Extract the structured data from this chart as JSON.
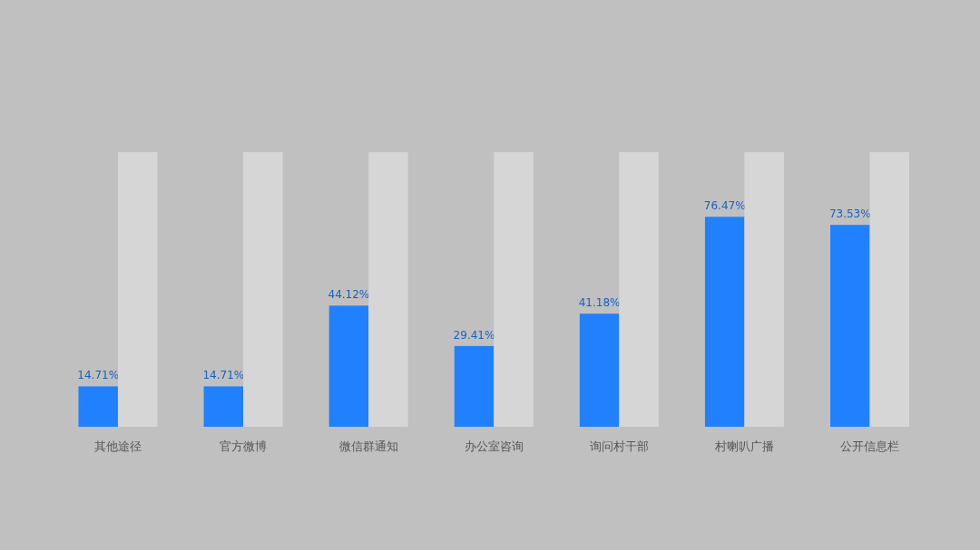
{
  "chart_data": {
    "type": "bar",
    "categories": [
      "其他途径",
      "官方微博",
      "微信群通知",
      "办公室咨询",
      "询问村干部",
      "村喇叭广播",
      "公开信息栏"
    ],
    "series": [
      {
        "color": "#2080fe",
        "values": [
          14.71,
          14.71,
          44.12,
          29.41,
          41.18,
          76.47,
          73.53
        ],
        "value_labels": [
          "14.71%",
          "14.71%",
          "44.12%",
          "29.41%",
          "41.18%",
          "76.47%",
          "73.53%"
        ]
      },
      {
        "color": "#d6d6d6",
        "values": [
          100,
          100,
          100,
          100,
          100,
          100,
          100
        ]
      }
    ]
  }
}
